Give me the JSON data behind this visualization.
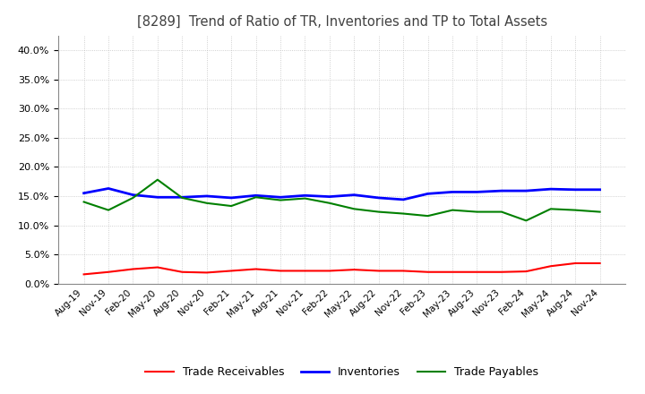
{
  "title": "[8289]  Trend of Ratio of TR, Inventories and TP to Total Assets",
  "x_labels": [
    "Aug-19",
    "Nov-19",
    "Feb-20",
    "May-20",
    "Aug-20",
    "Nov-20",
    "Feb-21",
    "May-21",
    "Aug-21",
    "Nov-21",
    "Feb-22",
    "May-22",
    "Aug-22",
    "Nov-22",
    "Feb-23",
    "May-23",
    "Aug-23",
    "Nov-23",
    "Feb-24",
    "May-24",
    "Aug-24",
    "Nov-24"
  ],
  "trade_receivables": [
    0.016,
    0.02,
    0.025,
    0.028,
    0.02,
    0.019,
    0.022,
    0.025,
    0.022,
    0.022,
    0.022,
    0.024,
    0.022,
    0.022,
    0.02,
    0.02,
    0.02,
    0.02,
    0.021,
    0.03,
    0.035,
    0.035
  ],
  "inventories": [
    0.155,
    0.163,
    0.152,
    0.148,
    0.148,
    0.15,
    0.147,
    0.151,
    0.148,
    0.151,
    0.149,
    0.152,
    0.147,
    0.144,
    0.154,
    0.157,
    0.157,
    0.159,
    0.159,
    0.162,
    0.161,
    0.161
  ],
  "trade_payables": [
    0.14,
    0.126,
    0.147,
    0.178,
    0.147,
    0.138,
    0.133,
    0.148,
    0.143,
    0.146,
    0.138,
    0.128,
    0.123,
    0.12,
    0.116,
    0.126,
    0.123,
    0.123,
    0.108,
    0.128,
    0.126,
    0.123
  ],
  "color_tr": "#FF0000",
  "color_inv": "#0000FF",
  "color_tp": "#008000",
  "ylim": [
    0.0,
    0.425
  ],
  "yticks": [
    0.0,
    0.05,
    0.1,
    0.15,
    0.2,
    0.25,
    0.3,
    0.35,
    0.4
  ],
  "legend_labels": [
    "Trade Receivables",
    "Inventories",
    "Trade Payables"
  ],
  "background_color": "#ffffff",
  "grid_color": "#bbbbbb",
  "title_color": "#404040"
}
